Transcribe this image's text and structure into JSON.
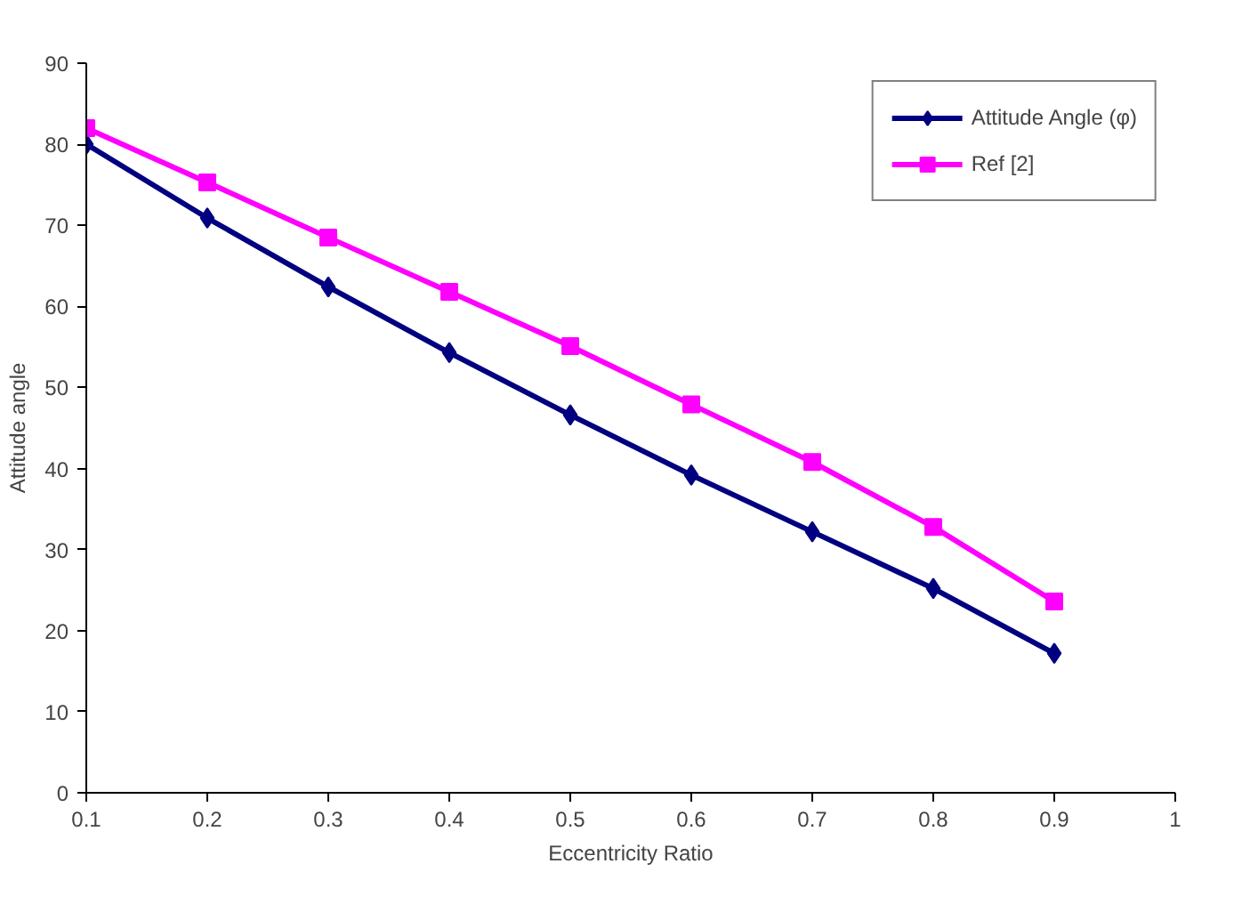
{
  "chart_data": {
    "type": "line",
    "xlabel": "Eccentricity Ratio",
    "ylabel": "Attitude angle",
    "x": [
      0.1,
      0.2,
      0.3,
      0.4,
      0.5,
      0.6,
      0.7,
      0.8,
      0.9
    ],
    "series": [
      {
        "name": "Attitude Angle (φ)",
        "color": "#000080",
        "marker": "diamond",
        "values": [
          80,
          70.9,
          62.4,
          54.3,
          46.6,
          39.2,
          32.2,
          25.2,
          17.2
        ]
      },
      {
        "name": "Ref [2]",
        "color": "#ff00ff",
        "marker": "square",
        "values": [
          82,
          75.3,
          68.5,
          61.8,
          55.1,
          47.9,
          40.8,
          32.8,
          23.6
        ]
      }
    ],
    "xlim": [
      0.1,
      1
    ],
    "xticks": [
      0.1,
      0.2,
      0.3,
      0.4,
      0.5,
      0.6,
      0.7,
      0.8,
      0.9,
      1
    ],
    "ylim": [
      0,
      90
    ],
    "yticks": [
      0,
      10,
      20,
      30,
      40,
      50,
      60,
      70,
      80,
      90
    ],
    "grid": false,
    "legend": "top right",
    "line_style": "solid"
  }
}
